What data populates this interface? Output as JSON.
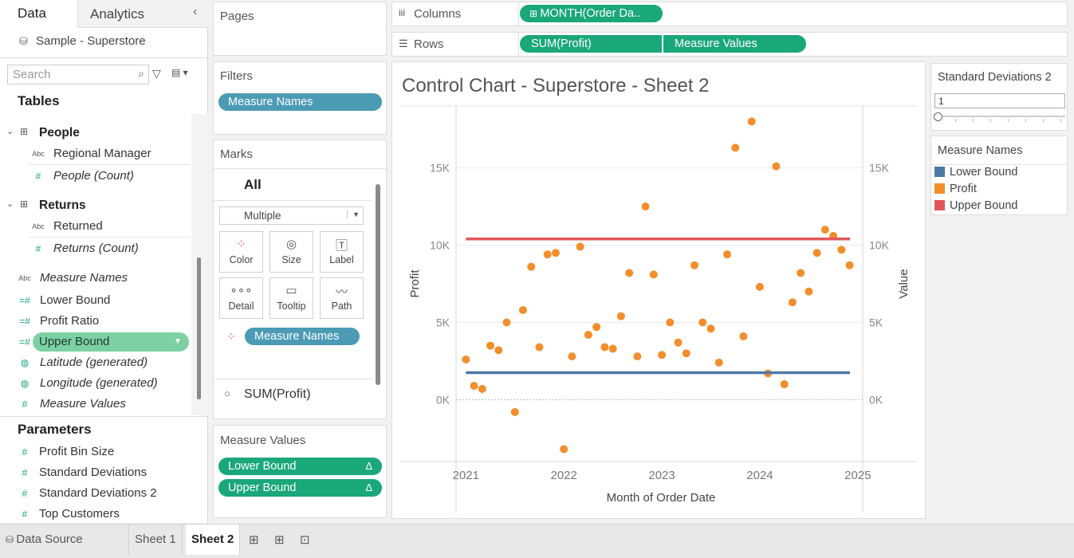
{
  "data_pane": {
    "tabs": [
      "Data",
      "Analytics"
    ],
    "datasource": "Sample - Superstore",
    "search_placeholder": "Search",
    "tables_heading": "Tables",
    "groups": [
      {
        "name": "People",
        "fields": [
          {
            "label": "Regional Manager",
            "type": "Abc",
            "italic": false
          },
          {
            "label": "People (Count)",
            "type": "#",
            "italic": true
          }
        ]
      },
      {
        "name": "Returns",
        "fields": [
          {
            "label": "Returned",
            "type": "Abc",
            "italic": false
          },
          {
            "label": "Returns (Count)",
            "type": "#",
            "italic": true
          }
        ]
      }
    ],
    "measures": [
      {
        "label": "Measure Names",
        "type": "Abc",
        "italic": true
      },
      {
        "label": "Lower Bound",
        "type": "=#",
        "italic": false
      },
      {
        "label": "Profit Ratio",
        "type": "=#",
        "italic": false
      },
      {
        "label": "Upper Bound",
        "type": "=#",
        "italic": false,
        "selected": true
      },
      {
        "label": "Latitude (generated)",
        "type": "globe",
        "italic": true
      },
      {
        "label": "Longitude (generated)",
        "type": "globe",
        "italic": true
      },
      {
        "label": "Measure Values",
        "type": "#",
        "italic": true
      }
    ],
    "parameters_heading": "Parameters",
    "parameters": [
      "Profit Bin Size",
      "Standard Deviations",
      "Standard Deviations 2",
      "Top Customers"
    ]
  },
  "pages_label": "Pages",
  "filters": {
    "label": "Filters",
    "pills": [
      "Measure Names"
    ]
  },
  "marks": {
    "label": "Marks",
    "all_label": "All",
    "mark_type": "Multiple",
    "buttons": [
      "Color",
      "Size",
      "Label",
      "Detail",
      "Tooltip",
      "Path"
    ],
    "color_pill": "Measure Names",
    "sum_profit": "SUM(Profit)"
  },
  "measure_values": {
    "label": "Measure Values",
    "pills": [
      "Lower Bound",
      "Upper Bound"
    ],
    "delta": "Δ"
  },
  "shelves": {
    "columns_label": "Columns",
    "columns_pills": [
      "MONTH(Order Da.."
    ],
    "rows_label": "Rows",
    "rows_pills": [
      "SUM(Profit)",
      "Measure Values"
    ]
  },
  "parameter_card": {
    "title": "Standard Deviations 2",
    "value": "1"
  },
  "legend": {
    "title": "Measure Names",
    "items": [
      {
        "label": "Lower Bound",
        "color": "#4e79a7"
      },
      {
        "label": "Profit",
        "color": "#f28e2b"
      },
      {
        "label": "Upper Bound",
        "color": "#e15759"
      }
    ]
  },
  "sheet_tabs": [
    "Data Source",
    "Sheet 1",
    "Sheet 2"
  ],
  "active_sheet": "Sheet 2",
  "chart_data": {
    "type": "scatter",
    "title": "Control Chart - Superstore - Sheet 2",
    "xlabel": "Month of Order Date",
    "ylabel": "Profit",
    "y2label": "Value",
    "x_ticks": [
      "2021",
      "2022",
      "2023",
      "2024",
      "2025"
    ],
    "y_ticks": [
      "0K",
      "5K",
      "10K",
      "15K"
    ],
    "ylim": [
      -4000,
      19000
    ],
    "grid": true,
    "series": [
      {
        "name": "Profit",
        "color": "#f28e2b",
        "x": [
          "2021-01",
          "2021-02",
          "2021-03",
          "2021-04",
          "2021-05",
          "2021-06",
          "2021-07",
          "2021-08",
          "2021-09",
          "2021-10",
          "2021-11",
          "2021-12",
          "2022-01",
          "2022-02",
          "2022-03",
          "2022-04",
          "2022-05",
          "2022-06",
          "2022-07",
          "2022-08",
          "2022-09",
          "2022-10",
          "2022-11",
          "2022-12",
          "2023-01",
          "2023-02",
          "2023-03",
          "2023-04",
          "2023-05",
          "2023-06",
          "2023-07",
          "2023-08",
          "2023-09",
          "2023-10",
          "2023-11",
          "2023-12",
          "2024-01",
          "2024-02",
          "2024-03",
          "2024-04",
          "2024-05",
          "2024-06",
          "2024-07",
          "2024-08",
          "2024-09",
          "2024-10",
          "2024-11",
          "2024-12"
        ],
        "values": [
          2600,
          900,
          700,
          3500,
          3200,
          5000,
          -800,
          5800,
          8600,
          3400,
          9400,
          9500,
          -3200,
          2800,
          9900,
          4200,
          4700,
          3400,
          3300,
          5400,
          8200,
          2800,
          12500,
          8100,
          2900,
          5000,
          3700,
          3000,
          8700,
          5000,
          4600,
          2400,
          9400,
          16300,
          4100,
          18000,
          7300,
          1700,
          15100,
          1000,
          6300,
          8200,
          7000,
          9500,
          11000,
          10600,
          9700,
          8700
        ]
      },
      {
        "name": "Lower Bound",
        "color": "#4e79a7",
        "line": true,
        "constant": 1750
      },
      {
        "name": "Upper Bound",
        "color": "#e15759",
        "line": true,
        "constant": 10400
      }
    ]
  }
}
